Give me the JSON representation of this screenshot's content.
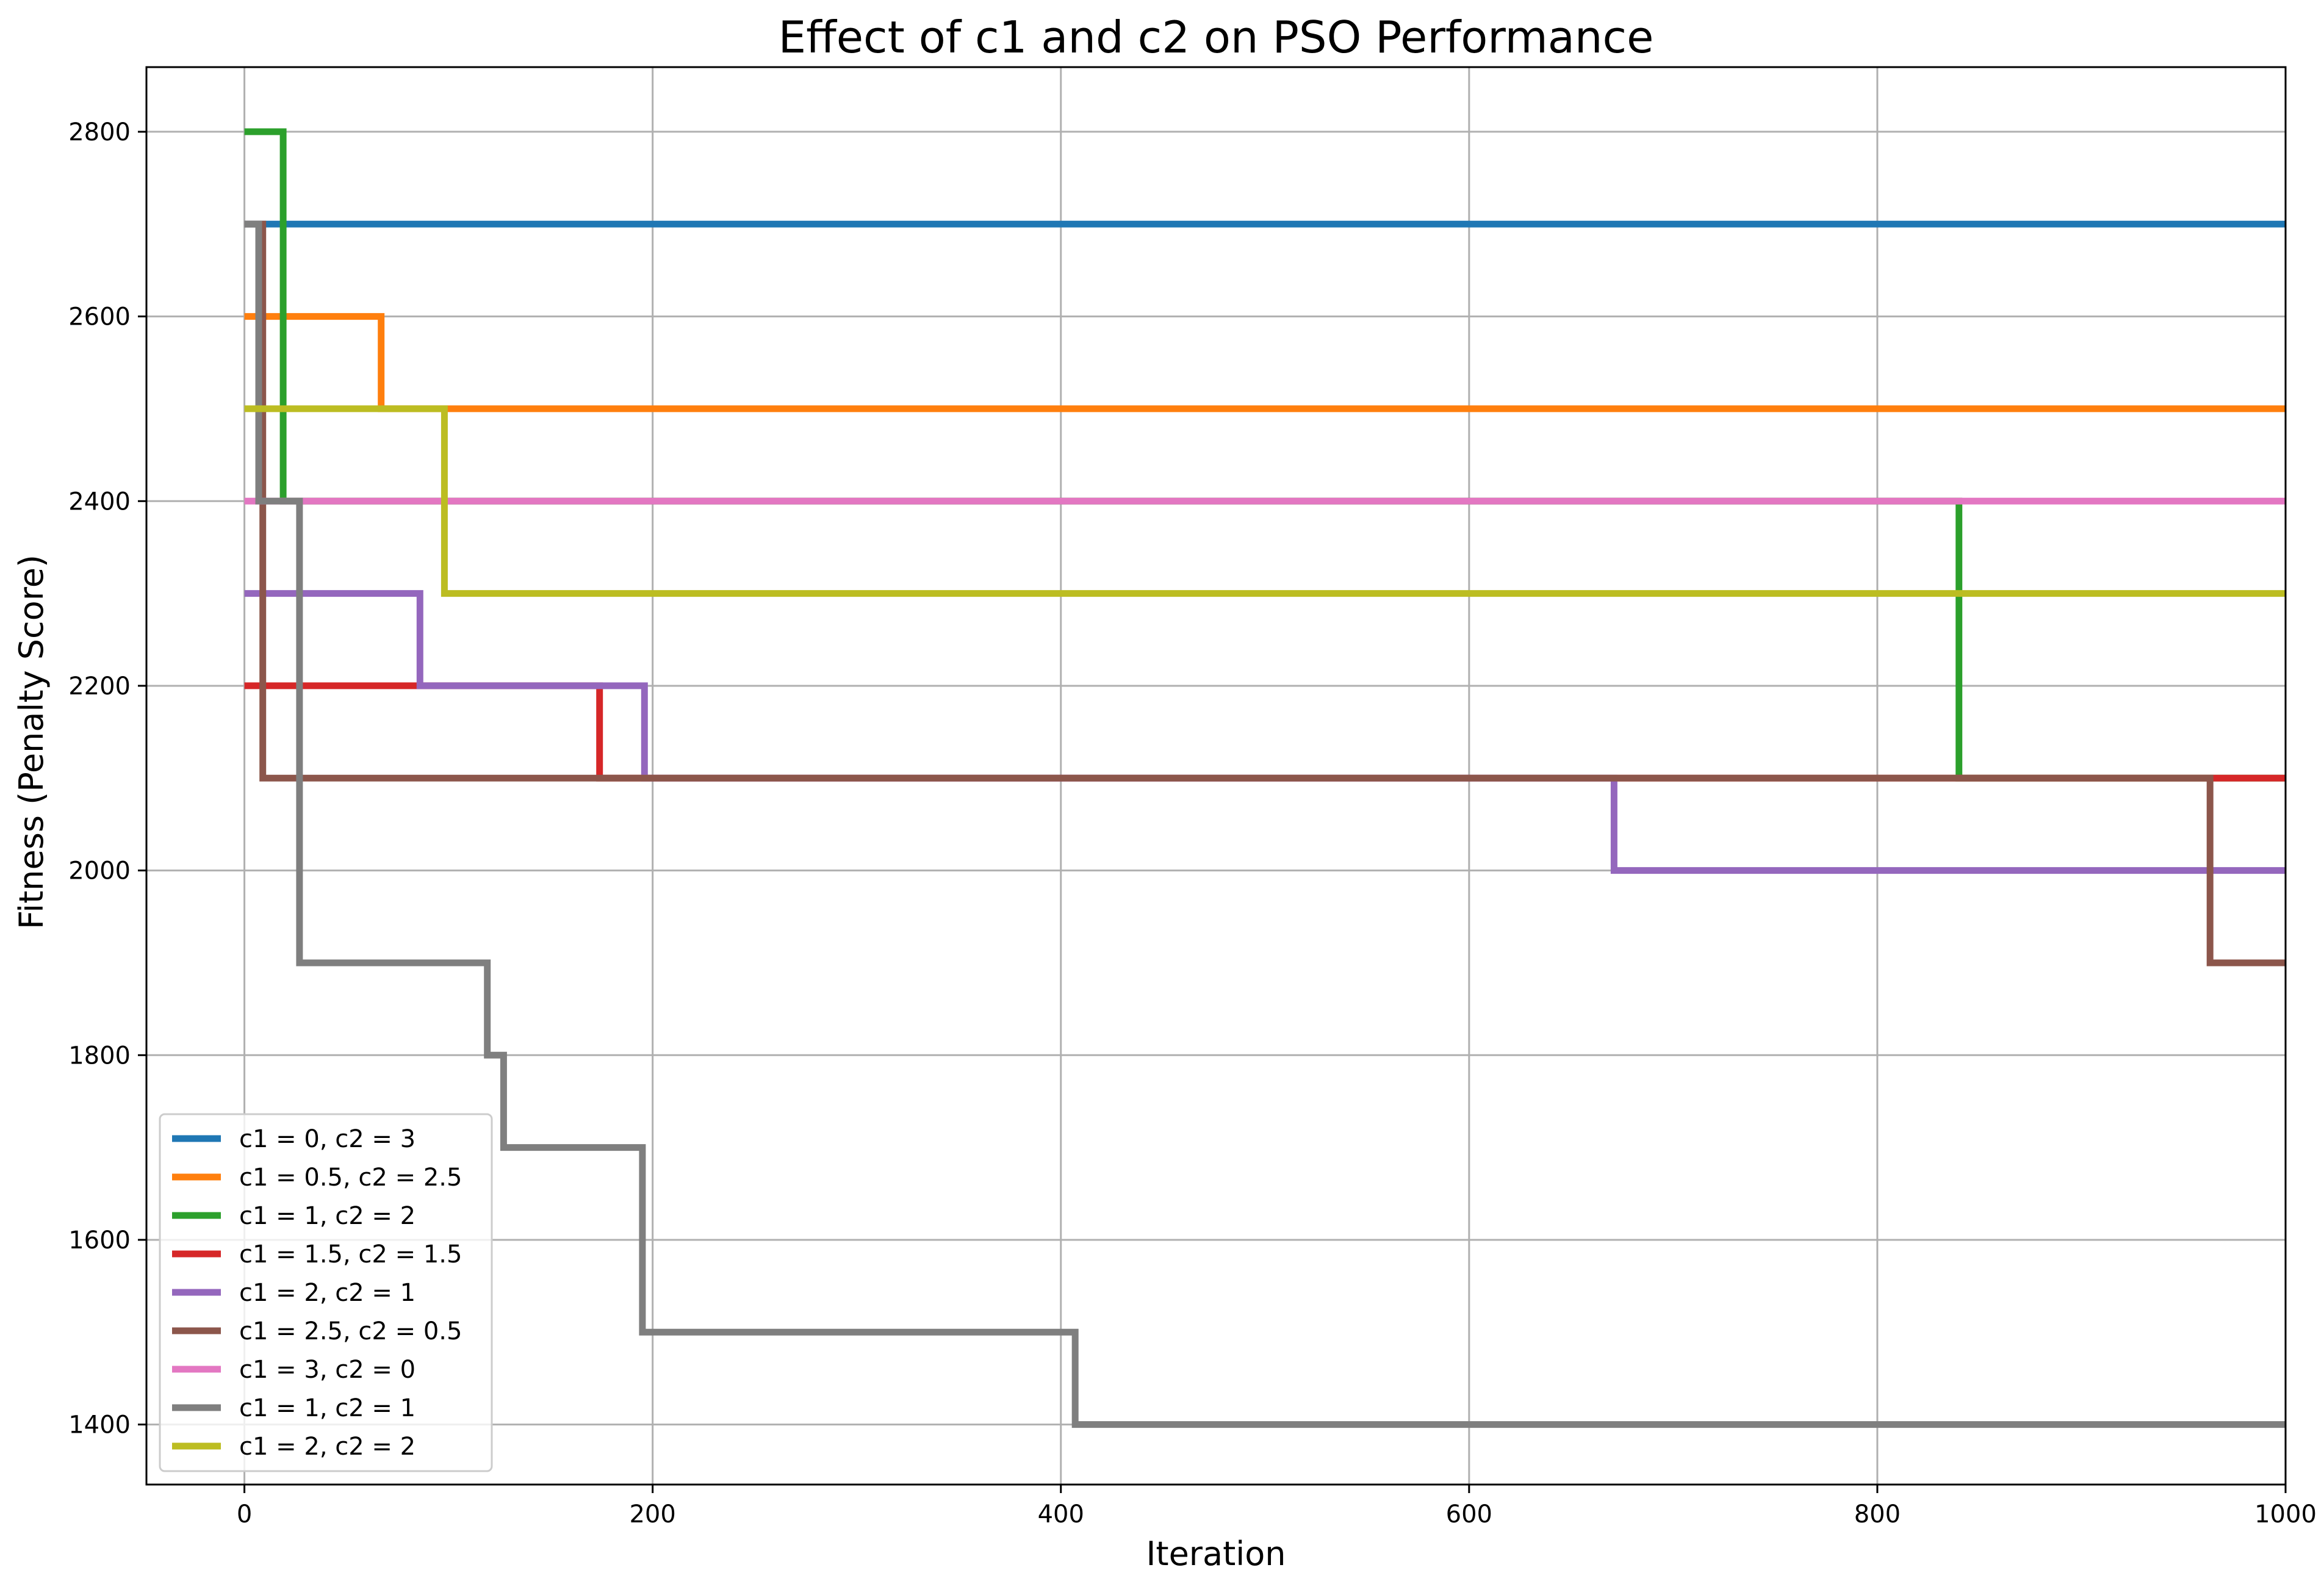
{
  "chart_data": {
    "type": "line",
    "title": "Effect of c1 and c2 on PSO Performance",
    "xlabel": "Iteration",
    "ylabel": "Fitness (Penalty Score)",
    "xlim": [
      -48,
      1000
    ],
    "ylim": [
      1335,
      2870
    ],
    "xticks": [
      0,
      200,
      400,
      600,
      800,
      1000
    ],
    "yticks": [
      1400,
      1600,
      1800,
      2000,
      2200,
      2400,
      2600,
      2800
    ],
    "grid": true,
    "legend_position": "lower-left",
    "step_style": "post",
    "series": [
      {
        "name": "c1 = 0, c2 = 3",
        "color": "#1f77b4",
        "points": [
          [
            0,
            2700
          ],
          [
            1000,
            2700
          ]
        ]
      },
      {
        "name": "c1 = 0.5, c2 = 2.5",
        "color": "#ff7f0e",
        "points": [
          [
            0,
            2600
          ],
          [
            67,
            2500
          ],
          [
            1000,
            2500
          ]
        ]
      },
      {
        "name": "c1 = 1, c2 = 2",
        "color": "#2ca02c",
        "points": [
          [
            0,
            2800
          ],
          [
            19,
            2400
          ],
          [
            840,
            2100
          ],
          [
            1000,
            2100
          ]
        ]
      },
      {
        "name": "c1 = 1.5, c2 = 1.5",
        "color": "#d62728",
        "points": [
          [
            0,
            2200
          ],
          [
            174,
            2100
          ],
          [
            1000,
            2100
          ]
        ]
      },
      {
        "name": "c1 = 2, c2 = 1",
        "color": "#9467bd",
        "points": [
          [
            0,
            2300
          ],
          [
            86,
            2200
          ],
          [
            196,
            2100
          ],
          [
            671,
            2000
          ],
          [
            1000,
            2000
          ]
        ]
      },
      {
        "name": "c1 = 2.5, c2 = 0.5",
        "color": "#8c564b",
        "points": [
          [
            0,
            2700
          ],
          [
            9,
            2100
          ],
          [
            963,
            1900
          ],
          [
            1000,
            1900
          ]
        ]
      },
      {
        "name": "c1 = 3, c2 = 0",
        "color": "#e377c2",
        "points": [
          [
            0,
            2400
          ],
          [
            1000,
            2400
          ]
        ]
      },
      {
        "name": "c1 = 1, c2 = 1",
        "color": "#7f7f7f",
        "points": [
          [
            0,
            2700
          ],
          [
            7,
            2400
          ],
          [
            27,
            1900
          ],
          [
            119,
            1800
          ],
          [
            127,
            1700
          ],
          [
            195,
            1500
          ],
          [
            407,
            1400
          ],
          [
            1000,
            1400
          ]
        ]
      },
      {
        "name": "c1 = 2, c2 = 2",
        "color": "#bcbd22",
        "points": [
          [
            0,
            2500
          ],
          [
            98,
            2300
          ],
          [
            1000,
            2300
          ]
        ]
      }
    ]
  }
}
